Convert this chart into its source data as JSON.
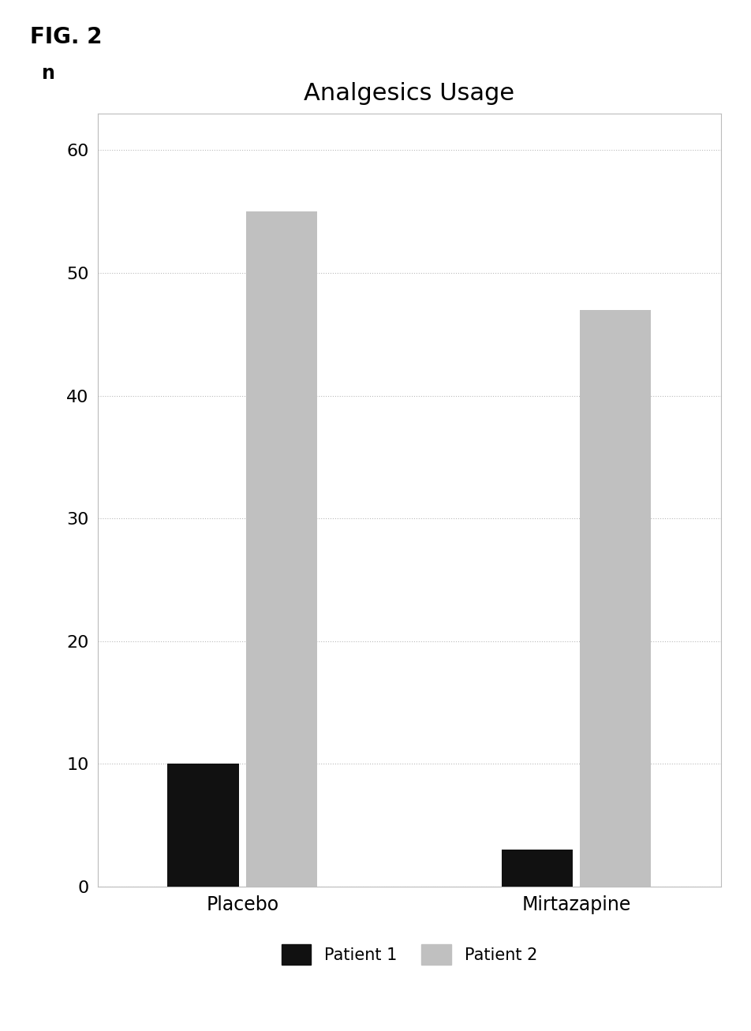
{
  "title": "Analgesics Usage",
  "fig_label": "FIG. 2",
  "ylabel": "n",
  "ylim": [
    0,
    63
  ],
  "yticks": [
    0,
    10,
    20,
    30,
    40,
    50,
    60
  ],
  "groups": [
    "Placebo",
    "Mirtazapine"
  ],
  "patient1_values": [
    10,
    3
  ],
  "patient2_values": [
    55,
    47
  ],
  "patient1_color": "#111111",
  "patient2_color": "#c0c0c0",
  "bar_width": 0.32,
  "group_positions": [
    1.0,
    2.5
  ],
  "plot_bg_color": "#ffffff",
  "fig_bg_color": "#ffffff",
  "chart_border_color": "#bbbbbb",
  "grid_color": "#bbbbbb",
  "title_fontsize": 22,
  "tick_fontsize": 16,
  "legend_fontsize": 15,
  "fig_label_fontsize": 20,
  "xlabel_fontsize": 17,
  "ylabel_fontsize": 17
}
